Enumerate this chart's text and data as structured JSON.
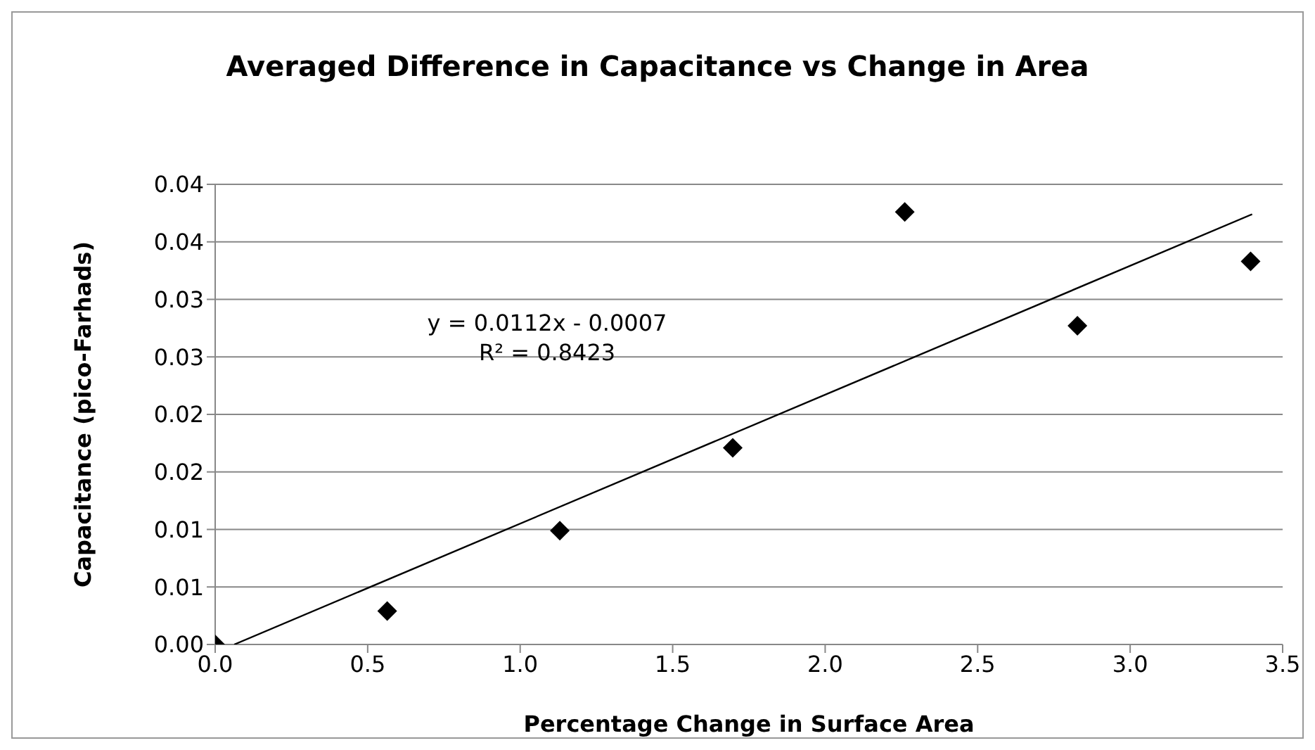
{
  "chart_data": {
    "type": "scatter",
    "title": "Averaged Difference in Capacitance vs Change in Area",
    "xlabel": "Percentage Change in Surface Area",
    "ylabel": "Capacitance (pico-Farhads)",
    "series": [
      {
        "color": "#000000",
        "marker": "diamond",
        "x": [
          0,
          0.564,
          1.13,
          1.697,
          2.261,
          2.827,
          3.395
        ],
        "values": [
          0,
          0.0029,
          0.0099,
          0.0171,
          0.0376,
          0.0277,
          0.0333
        ]
      },
      {
        "type": "line",
        "color": "#000000",
        "marker": "none",
        "x": [
          0.0625,
          3.4
        ],
        "values": [
          0,
          0.0374
        ]
      }
    ],
    "annotations": [
      "y = 0.0112x - 0.0007",
      "R² = 0.8423"
    ],
    "xlim": [
      0,
      3.5
    ],
    "xticks": [
      {
        "value": 0,
        "label": "0.0"
      },
      {
        "value": 0.5,
        "label": "0.5"
      },
      {
        "value": 1,
        "label": "1.0"
      },
      {
        "value": 1.5,
        "label": "1.5"
      },
      {
        "value": 2,
        "label": "2.0"
      },
      {
        "value": 2.5,
        "label": "2.5"
      },
      {
        "value": 3,
        "label": "3.0"
      },
      {
        "value": 3.5,
        "label": "3.5"
      }
    ],
    "ylim": [
      0,
      0.04
    ],
    "yticks": [
      {
        "value": 0,
        "label": "0.00"
      },
      {
        "value": 0.005,
        "label": "0.01"
      },
      {
        "value": 0.01,
        "label": "0.01"
      },
      {
        "value": 0.015,
        "label": "0.02"
      },
      {
        "value": 0.02,
        "label": "0.02"
      },
      {
        "value": 0.025,
        "label": "0.03"
      },
      {
        "value": 0.03,
        "label": "0.03"
      },
      {
        "value": 0.035,
        "label": "0.04"
      },
      {
        "value": 0.04,
        "label": "0.04"
      }
    ],
    "grid": "y",
    "legend": false
  }
}
